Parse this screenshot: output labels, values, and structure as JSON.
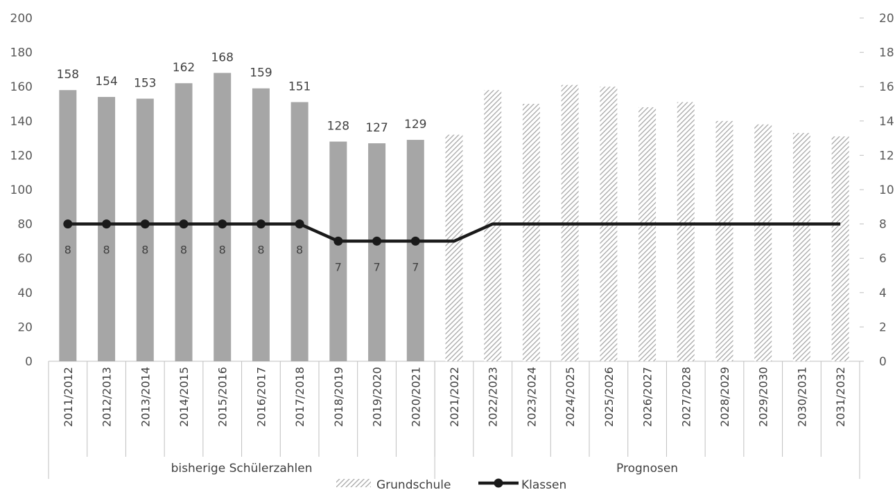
{
  "chart_data": {
    "type": "bar",
    "title": "",
    "categories": [
      "2011/2012",
      "2012/2013",
      "2013/2014",
      "2014/2015",
      "2015/2016",
      "2016/2017",
      "2017/2018",
      "2018/2019",
      "2019/2020",
      "2020/2021",
      "2021/2022",
      "2022/2023",
      "2023/2024",
      "2024/2025",
      "2025/2026",
      "2026/2027",
      "2027/2028",
      "2028/2029",
      "2029/2030",
      "2030/2031",
      "2031/2032"
    ],
    "groups": [
      {
        "label": "bisherige Schülerzahlen",
        "count": 10
      },
      {
        "label": "Prognosen",
        "count": 11
      }
    ],
    "series": [
      {
        "name": "Grundschule",
        "type": "bar",
        "axis": "left",
        "values": [
          158,
          154,
          153,
          162,
          168,
          159,
          151,
          128,
          127,
          129,
          132,
          158,
          150,
          161,
          160,
          148,
          151,
          140,
          138,
          133,
          131
        ],
        "labels": [
          "158",
          "154",
          "153",
          "162",
          "168",
          "159",
          "151",
          "128",
          "127",
          "129"
        ]
      },
      {
        "name": "Klassen",
        "type": "line",
        "axis": "right",
        "values": [
          8,
          8,
          8,
          8,
          8,
          8,
          8,
          7,
          7,
          7,
          7,
          8,
          8,
          8,
          8,
          8,
          8,
          8,
          8,
          8,
          8
        ],
        "labels": [
          "8",
          "8",
          "8",
          "8",
          "8",
          "8",
          "8",
          "7",
          "7",
          "7"
        ]
      }
    ],
    "y_left": {
      "min": 0,
      "max": 200,
      "step": 20,
      "ticks": [
        "0",
        "20",
        "40",
        "60",
        "80",
        "100",
        "120",
        "140",
        "160",
        "180",
        "200"
      ]
    },
    "y_right": {
      "min": 0,
      "max": 20,
      "step": 2,
      "ticks": [
        "0",
        "2",
        "4",
        "6",
        "8",
        "10",
        "12",
        "14",
        "16",
        "18",
        "20"
      ]
    },
    "grid": false,
    "legend_position": "bottom",
    "colors": {
      "bar_solid": "#a6a6a6",
      "bar_hatch": "#a6a6a6",
      "line": "#1a1a1a",
      "axis": "#bfbfbf"
    }
  }
}
